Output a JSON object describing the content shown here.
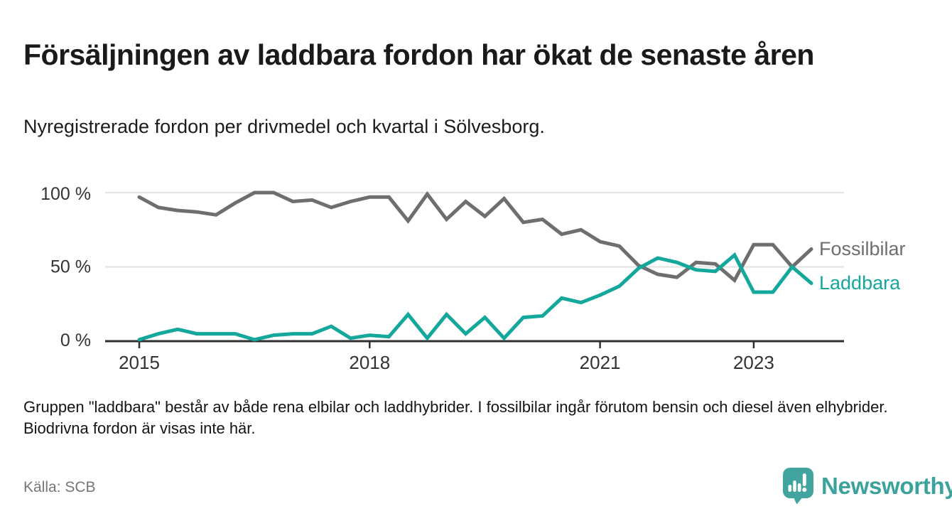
{
  "header": {
    "title": "Försäljningen av laddbara fordon har ökat de senaste åren",
    "subtitle": "Nyregistrerade fordon per drivmedel och kvartal i Sölvesborg."
  },
  "chart_data": {
    "type": "line",
    "title": "Nyregistrerade fordon per drivmedel och kvartal i Sölvesborg",
    "x_unit": "kvartal",
    "categories": [
      "2015 K1",
      "2015 K2",
      "2015 K3",
      "2015 K4",
      "2016 K1",
      "2016 K2",
      "2016 K3",
      "2016 K4",
      "2017 K1",
      "2017 K2",
      "2017 K3",
      "2017 K4",
      "2018 K1",
      "2018 K2",
      "2018 K3",
      "2018 K4",
      "2019 K1",
      "2019 K2",
      "2019 K3",
      "2019 K4",
      "2020 K1",
      "2020 K2",
      "2020 K3",
      "2020 K4",
      "2021 K1",
      "2021 K2",
      "2021 K3",
      "2021 K4",
      "2022 K1",
      "2022 K2",
      "2022 K3",
      "2022 K4",
      "2023 K1",
      "2023 K2",
      "2023 K3",
      "2023 K4"
    ],
    "series": [
      {
        "name": "Fossilbilar",
        "color": "#6e6e6e",
        "values": [
          97,
          90,
          88,
          87,
          85,
          93,
          100,
          100,
          94,
          95,
          90,
          94,
          97,
          97,
          81,
          99,
          82,
          94,
          84,
          96,
          80,
          82,
          72,
          75,
          67,
          64,
          51,
          45,
          43,
          53,
          52,
          41,
          65,
          65,
          50,
          62
        ]
      },
      {
        "name": "Laddbara",
        "color": "#14a79c",
        "values": [
          1,
          5,
          8,
          5,
          5,
          5,
          1,
          4,
          5,
          5,
          10,
          2,
          4,
          3,
          18,
          2,
          18,
          5,
          16,
          2,
          16,
          17,
          29,
          26,
          31,
          37,
          49,
          56,
          53,
          48,
          47,
          58,
          33,
          33,
          50,
          39
        ]
      }
    ],
    "x_tick_labels": [
      "2015",
      "2018",
      "2021",
      "2023"
    ],
    "x_tick_quarter_indices": [
      0,
      12,
      24,
      32
    ],
    "y_tick_labels": [
      "100 %",
      "50 %",
      "0 %"
    ],
    "y_tick_values": [
      100,
      50,
      0
    ],
    "ylim": [
      0,
      100
    ],
    "grid": "horizontal",
    "legend_position": "line-end-right"
  },
  "footer": {
    "note": "Gruppen \"laddbara\" består av både rena elbilar och laddhybrider. I fossilbilar ingår förutom bensin och diesel även elhybrider. Biodrivna fordon är visas inte här.",
    "source": "Källa: SCB",
    "brand": "Newsworthy"
  },
  "colors": {
    "line_gray": "#6e6e6e",
    "line_teal": "#14a79c",
    "axis": "#2f2f2f",
    "gridline": "#e2e2e2",
    "text_dark": "#1a1a1a",
    "text_muted": "#767676",
    "logo_teal": "#41a49e"
  }
}
